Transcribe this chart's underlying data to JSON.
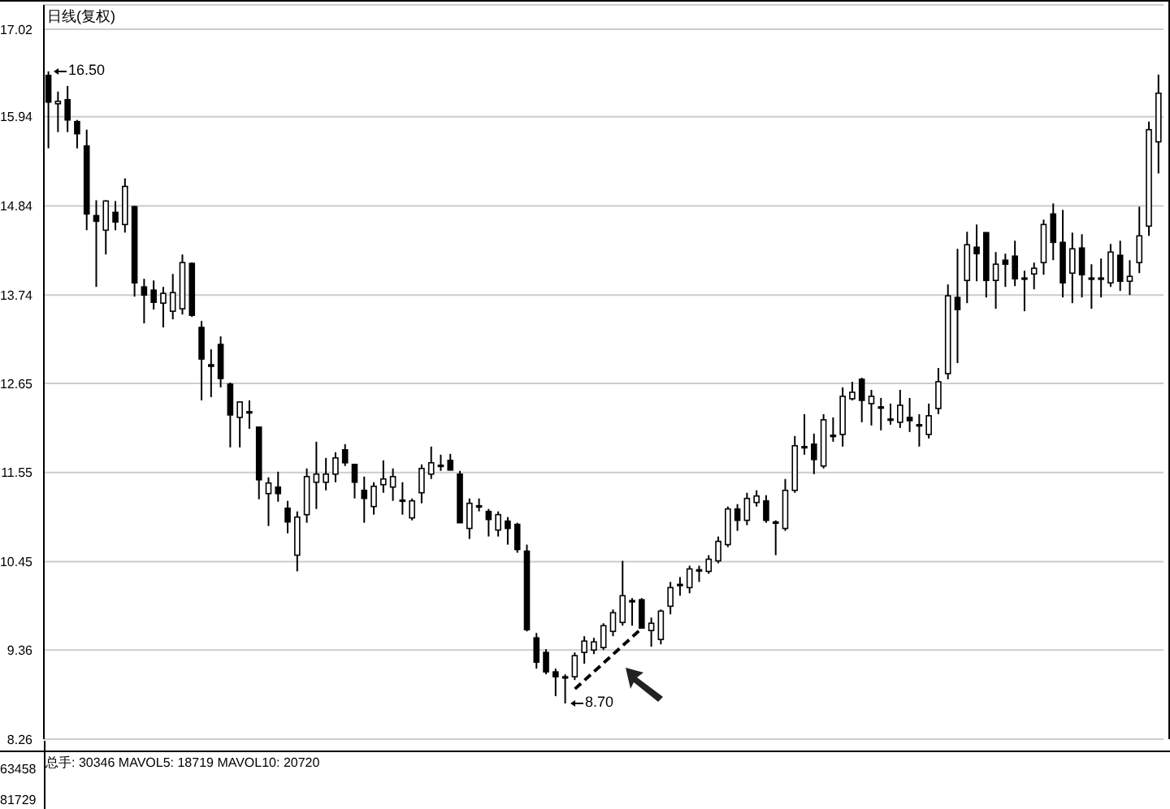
{
  "chart_data": {
    "type": "candlestick",
    "title": "日线(复权)",
    "categories": [
      null,
      null,
      null,
      null,
      null,
      null,
      null,
      null,
      null,
      null,
      null,
      null,
      null,
      null,
      null,
      null,
      null,
      null,
      null,
      null,
      null,
      null,
      null,
      null,
      null,
      null,
      null,
      null,
      null,
      null,
      null,
      null,
      null,
      null,
      null,
      null,
      null,
      null,
      null,
      null,
      null,
      null,
      null,
      null,
      null,
      null,
      null,
      null,
      null,
      null,
      null,
      null,
      null,
      null,
      null,
      null,
      null,
      null,
      null,
      null,
      null,
      null,
      null,
      null,
      null,
      null,
      null,
      null,
      null,
      null,
      null,
      null,
      null,
      null,
      null,
      null,
      null,
      null,
      null,
      null,
      null,
      null,
      null,
      null,
      null,
      null,
      null,
      null,
      null,
      null,
      null,
      null,
      null,
      null,
      null,
      null,
      null,
      null,
      null,
      null,
      null,
      null,
      null,
      null,
      null,
      null,
      null,
      null,
      null,
      null,
      null,
      null,
      null,
      null,
      null,
      null,
      null
    ],
    "ohlc": [
      [
        16.45,
        16.5,
        15.55,
        16.12
      ],
      [
        16.1,
        16.25,
        15.75,
        16.13
      ],
      [
        16.15,
        16.32,
        15.75,
        15.9
      ],
      [
        15.88,
        15.9,
        15.55,
        15.73
      ],
      [
        15.58,
        15.78,
        14.54,
        14.74
      ],
      [
        14.72,
        14.91,
        13.84,
        14.65
      ],
      [
        14.54,
        14.91,
        14.24,
        14.9
      ],
      [
        14.76,
        14.9,
        14.54,
        14.64
      ],
      [
        14.61,
        15.18,
        14.51,
        15.08
      ],
      [
        14.83,
        14.84,
        13.72,
        13.89
      ],
      [
        13.84,
        13.94,
        13.39,
        13.74
      ],
      [
        13.8,
        13.92,
        13.56,
        13.65
      ],
      [
        13.64,
        13.84,
        13.34,
        13.76
      ],
      [
        13.54,
        14.0,
        13.44,
        13.77
      ],
      [
        13.57,
        14.24,
        13.5,
        14.14
      ],
      [
        14.13,
        14.14,
        13.47,
        13.49
      ],
      [
        13.34,
        13.42,
        12.44,
        12.95
      ],
      [
        12.88,
        13.07,
        12.48,
        12.86
      ],
      [
        13.13,
        13.23,
        12.6,
        12.71
      ],
      [
        12.64,
        12.66,
        11.86,
        12.26
      ],
      [
        12.23,
        12.43,
        11.86,
        12.42
      ],
      [
        12.3,
        12.44,
        12.09,
        12.29
      ],
      [
        12.11,
        12.11,
        11.22,
        11.46
      ],
      [
        11.29,
        11.49,
        10.89,
        11.42
      ],
      [
        11.37,
        11.56,
        11.19,
        11.29
      ],
      [
        11.11,
        11.2,
        10.8,
        10.94
      ],
      [
        10.53,
        11.07,
        10.33,
        11.0
      ],
      [
        11.03,
        11.6,
        10.93,
        11.5
      ],
      [
        11.43,
        11.93,
        11.1,
        11.53
      ],
      [
        11.43,
        11.73,
        11.33,
        11.53
      ],
      [
        11.53,
        11.8,
        11.43,
        11.73
      ],
      [
        11.83,
        11.9,
        11.63,
        11.67
      ],
      [
        11.65,
        11.65,
        11.23,
        11.43
      ],
      [
        11.33,
        11.5,
        10.93,
        11.23
      ],
      [
        11.13,
        11.43,
        11.03,
        11.38
      ],
      [
        11.4,
        11.7,
        11.3,
        11.47
      ],
      [
        11.37,
        11.6,
        11.2,
        11.5
      ],
      [
        11.21,
        11.43,
        11.03,
        11.2
      ],
      [
        10.99,
        11.23,
        10.96,
        11.2
      ],
      [
        11.3,
        11.65,
        11.17,
        11.6
      ],
      [
        11.53,
        11.87,
        11.47,
        11.67
      ],
      [
        11.63,
        11.77,
        11.57,
        11.64
      ],
      [
        11.7,
        11.78,
        11.58,
        11.58
      ],
      [
        11.53,
        11.57,
        10.93,
        10.93
      ],
      [
        10.86,
        11.23,
        10.73,
        11.17
      ],
      [
        11.13,
        11.23,
        11.07,
        11.14
      ],
      [
        11.07,
        11.1,
        10.76,
        10.97
      ],
      [
        10.84,
        11.07,
        10.76,
        11.03
      ],
      [
        10.95,
        11.0,
        10.66,
        10.86
      ],
      [
        10.91,
        10.93,
        10.56,
        10.6
      ],
      [
        10.58,
        10.66,
        9.59,
        9.61
      ],
      [
        9.51,
        9.57,
        9.13,
        9.21
      ],
      [
        9.33,
        9.37,
        9.06,
        9.09
      ],
      [
        9.09,
        9.13,
        8.79,
        9.03
      ],
      [
        9.03,
        9.06,
        8.7,
        9.02
      ],
      [
        9.03,
        9.33,
        8.99,
        9.29
      ],
      [
        9.33,
        9.53,
        9.19,
        9.47
      ],
      [
        9.36,
        9.51,
        9.31,
        9.46
      ],
      [
        9.39,
        9.69,
        9.36,
        9.66
      ],
      [
        9.59,
        9.86,
        9.53,
        9.82
      ],
      [
        9.7,
        10.46,
        9.66,
        10.03
      ],
      [
        9.97,
        10.0,
        9.66,
        9.96
      ],
      [
        9.98,
        10.0,
        9.63,
        9.63
      ],
      [
        9.6,
        9.76,
        9.4,
        9.69
      ],
      [
        9.49,
        9.86,
        9.43,
        9.84
      ],
      [
        9.9,
        10.2,
        9.8,
        10.13
      ],
      [
        10.16,
        10.26,
        10.03,
        10.17
      ],
      [
        10.13,
        10.4,
        10.06,
        10.36
      ],
      [
        10.34,
        10.4,
        10.2,
        10.35
      ],
      [
        10.33,
        10.53,
        10.3,
        10.48
      ],
      [
        10.46,
        10.76,
        10.43,
        10.7
      ],
      [
        10.66,
        11.13,
        10.63,
        11.1
      ],
      [
        11.1,
        11.16,
        10.83,
        10.96
      ],
      [
        10.96,
        11.3,
        10.9,
        11.23
      ],
      [
        11.18,
        11.33,
        11.13,
        11.26
      ],
      [
        11.2,
        11.27,
        10.93,
        10.96
      ],
      [
        10.93,
        10.96,
        10.53,
        10.94
      ],
      [
        10.86,
        11.47,
        10.83,
        11.33
      ],
      [
        11.33,
        12.0,
        11.3,
        11.88
      ],
      [
        11.86,
        12.27,
        11.77,
        11.87
      ],
      [
        11.9,
        12.03,
        11.53,
        11.71
      ],
      [
        11.63,
        12.27,
        11.6,
        12.2
      ],
      [
        12.0,
        12.23,
        11.93,
        12.01
      ],
      [
        12.02,
        12.6,
        11.87,
        12.49
      ],
      [
        12.46,
        12.67,
        12.44,
        12.54
      ],
      [
        12.7,
        12.72,
        12.17,
        12.44
      ],
      [
        12.4,
        12.57,
        12.13,
        12.49
      ],
      [
        12.35,
        12.47,
        12.07,
        12.36
      ],
      [
        12.2,
        12.4,
        12.14,
        12.21
      ],
      [
        12.17,
        12.57,
        12.1,
        12.38
      ],
      [
        12.23,
        12.47,
        12.05,
        12.19
      ],
      [
        12.13,
        12.27,
        11.87,
        12.14
      ],
      [
        12.02,
        12.4,
        11.97,
        12.25
      ],
      [
        12.34,
        12.84,
        12.27,
        12.67
      ],
      [
        12.77,
        13.87,
        12.7,
        13.73
      ],
      [
        13.71,
        14.31,
        12.9,
        13.56
      ],
      [
        13.92,
        14.52,
        13.64,
        14.36
      ],
      [
        14.33,
        14.61,
        13.91,
        14.25
      ],
      [
        14.51,
        14.51,
        13.71,
        13.92
      ],
      [
        13.92,
        14.27,
        13.57,
        14.12
      ],
      [
        14.17,
        14.25,
        13.84,
        14.12
      ],
      [
        14.22,
        14.41,
        13.85,
        13.94
      ],
      [
        13.94,
        14.04,
        13.54,
        13.95
      ],
      [
        14.0,
        14.14,
        13.81,
        14.07
      ],
      [
        14.14,
        14.67,
        13.99,
        14.61
      ],
      [
        14.74,
        14.87,
        14.17,
        14.39
      ],
      [
        14.39,
        14.79,
        13.71,
        13.89
      ],
      [
        14.01,
        14.51,
        13.64,
        14.31
      ],
      [
        14.32,
        14.49,
        13.71,
        13.99
      ],
      [
        13.94,
        14.12,
        13.57,
        13.95
      ],
      [
        13.95,
        14.19,
        13.71,
        13.94
      ],
      [
        13.89,
        14.37,
        13.84,
        14.27
      ],
      [
        14.23,
        14.41,
        13.79,
        13.91
      ],
      [
        13.91,
        14.17,
        13.74,
        13.97
      ],
      [
        14.14,
        14.83,
        14.01,
        14.47
      ],
      [
        14.59,
        15.88,
        14.47,
        15.78
      ],
      [
        15.63,
        16.46,
        15.24,
        16.23
      ]
    ],
    "series": [
      {
        "type": "line",
        "color": "#000000",
        "line_style": "dashed",
        "values": [
          null,
          null,
          null,
          null,
          null,
          null,
          null,
          null,
          null,
          null,
          null,
          null,
          null,
          null,
          null,
          null,
          null,
          null,
          null,
          null,
          null,
          null,
          null,
          null,
          null,
          null,
          null,
          null,
          null,
          null,
          null,
          null,
          null,
          null,
          null,
          null,
          null,
          null,
          null,
          null,
          null,
          null,
          null,
          null,
          null,
          null,
          null,
          null,
          null,
          null,
          null,
          null,
          null,
          null,
          null,
          8.88,
          null,
          null,
          null,
          null,
          null,
          null,
          9.63,
          null,
          null,
          null,
          null,
          null,
          null,
          null,
          null,
          null,
          null,
          null,
          null,
          null,
          null,
          null,
          null,
          null,
          null,
          null,
          null,
          null,
          null,
          null,
          null,
          null,
          null,
          null,
          null,
          null,
          null,
          null,
          null,
          null,
          null,
          null,
          null,
          null,
          null,
          null,
          null,
          null,
          null,
          null,
          null,
          null,
          null,
          null,
          null,
          null,
          null,
          null,
          null,
          null,
          null
        ]
      }
    ],
    "ylim": [
      8.26,
      17.32
    ],
    "yticks": [
      8.26,
      9.36,
      10.45,
      11.55,
      12.65,
      13.74,
      14.84,
      15.94,
      17.02
    ],
    "grid": "y",
    "tick_labels": "y",
    "annotations": [
      "16.50",
      "8.70",
      "总手: 30346 MAVOL5: 18719 MAVOL10: 20720",
      "63458",
      "81729"
    ]
  }
}
